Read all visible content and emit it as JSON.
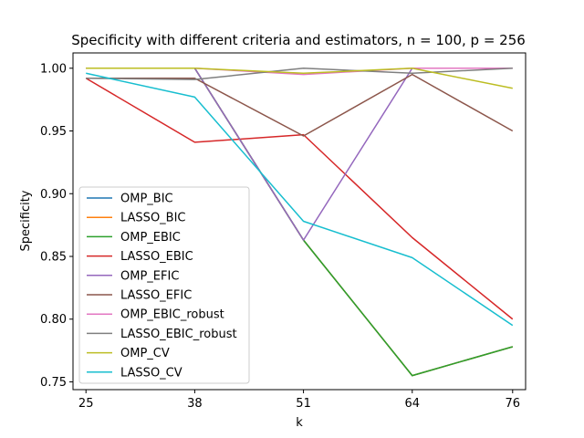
{
  "chart_data": {
    "type": "line",
    "title": "Specificity with different criteria and estimators, n = 100, p = 256",
    "xlabel": "k",
    "ylabel": "Specificity",
    "x": [
      25,
      38,
      51,
      64,
      76
    ],
    "xlim": [
      23.45,
      77.55
    ],
    "ylim": [
      0.7438,
      1.0122
    ],
    "yticks": [
      0.75,
      0.8,
      0.85,
      0.9,
      0.95,
      1.0
    ],
    "ytick_labels": [
      "0.75",
      "0.80",
      "0.85",
      "0.90",
      "0.95",
      "1.00"
    ],
    "xtick_labels": [
      "25",
      "38",
      "51",
      "64",
      "76"
    ],
    "grid": false,
    "legend_position": "lower-left",
    "series": [
      {
        "name": "OMP_BIC",
        "color": "#1f77b4",
        "values": [
          1.0,
          1.0,
          0.863,
          0.755,
          0.778
        ]
      },
      {
        "name": "LASSO_BIC",
        "color": "#ff7f0e",
        "values": [
          1.0,
          1.0,
          0.863,
          0.755,
          0.778
        ]
      },
      {
        "name": "OMP_EBIC",
        "color": "#2ca02c",
        "values": [
          1.0,
          1.0,
          0.863,
          0.755,
          0.778
        ]
      },
      {
        "name": "LASSO_EBIC",
        "color": "#d62728",
        "values": [
          0.992,
          0.941,
          0.947,
          0.865,
          0.8
        ]
      },
      {
        "name": "OMP_EFIC",
        "color": "#9467bd",
        "values": [
          1.0,
          1.0,
          0.863,
          1.0,
          1.0
        ]
      },
      {
        "name": "LASSO_EFIC",
        "color": "#8c564b",
        "values": [
          0.992,
          0.992,
          0.946,
          0.995,
          0.95
        ]
      },
      {
        "name": "OMP_EBIC_robust",
        "color": "#e377c2",
        "values": [
          1.0,
          1.0,
          0.995,
          1.0,
          1.0
        ]
      },
      {
        "name": "LASSO_EBIC_robust",
        "color": "#7f7f7f",
        "values": [
          0.992,
          0.991,
          1.0,
          0.996,
          1.0
        ]
      },
      {
        "name": "OMP_CV",
        "color": "#bcbd22",
        "values": [
          1.0,
          1.0,
          0.996,
          1.0,
          0.984
        ]
      },
      {
        "name": "LASSO_CV",
        "color": "#17becf",
        "values": [
          0.996,
          0.977,
          0.878,
          0.849,
          0.795
        ]
      }
    ]
  }
}
